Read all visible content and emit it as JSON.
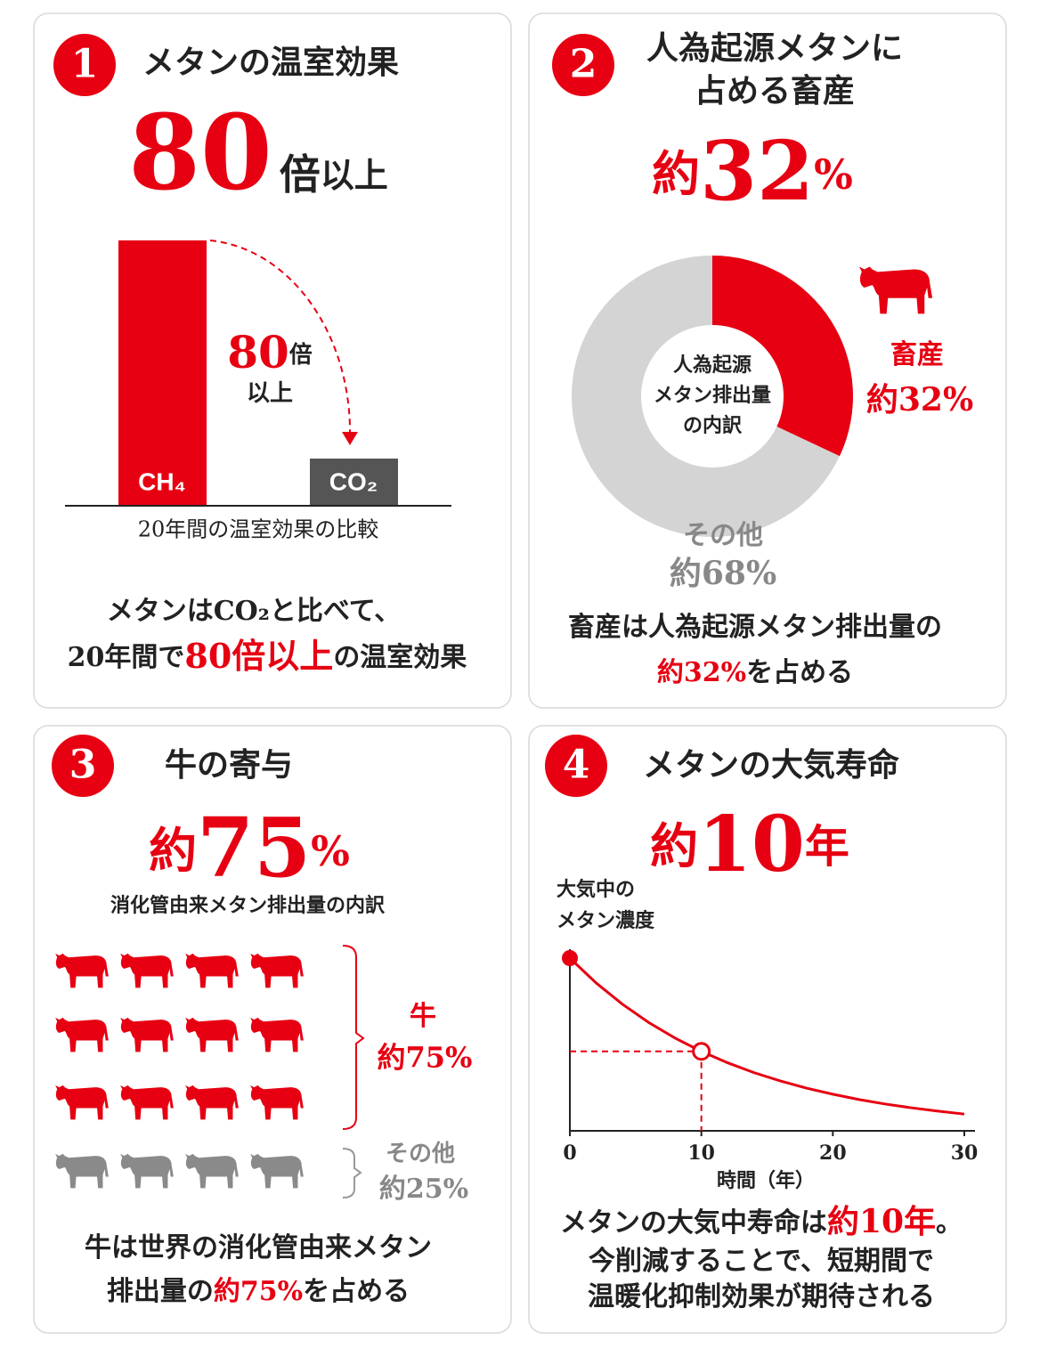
{
  "panels": [
    {
      "number": "1",
      "title": "メタンの温室効果",
      "headline": [
        "80",
        "倍",
        "以上"
      ],
      "bars": [
        "CH₄",
        "CO₂"
      ],
      "annotation": [
        "80",
        "倍",
        "以上"
      ],
      "caption": "20年間の温室効果の比較",
      "summary": [
        [
          "メタンはCO₂と比べて、"
        ],
        [
          "20年間で",
          "80倍以上",
          "の温室効果"
        ]
      ]
    },
    {
      "number": "2",
      "title": [
        "人為起源メタンに",
        "占める畜産"
      ],
      "headline": [
        "約",
        "32",
        "%"
      ],
      "summary": [
        [
          "畜産は人為起源メタン排出量の"
        ],
        [
          "約32%",
          "を占める"
        ]
      ]
    },
    {
      "number": "3",
      "title": "牛の寄与",
      "headline": [
        "約",
        "75",
        "%"
      ],
      "subtitle": "消化管由来メタン排出量の内訳",
      "groups": [
        {
          "name": "牛",
          "label": "約75%"
        },
        {
          "name": "その他",
          "label": "約25%"
        }
      ],
      "summary": [
        [
          "牛は世界の消化管由来メタン"
        ],
        [
          "排出量の",
          "約75%",
          "を占める"
        ]
      ]
    },
    {
      "number": "4",
      "title": "メタンの大気寿命",
      "headline": [
        "約",
        "10",
        "年"
      ],
      "summary": [
        [
          "メタンの大気中寿命は",
          "約10年",
          "。"
        ],
        [
          "今削減することで、短期間で"
        ],
        [
          "温暖化抑制効果が期待される"
        ]
      ]
    }
  ],
  "chart_data": [
    {
      "type": "pie",
      "center_label": [
        "人為起源",
        "メタン排出量",
        "の内訳"
      ],
      "categories": [
        "畜産",
        "その他"
      ],
      "values": [
        32,
        68
      ],
      "value_labels": [
        "約32%",
        "約68%"
      ],
      "colors": [
        "#e60012",
        "#d4d4d4"
      ]
    },
    {
      "type": "line",
      "y_label": [
        "大気中の",
        "メタン濃度"
      ],
      "x_label": "時間（年）",
      "x": [
        0,
        2,
        4,
        6,
        8,
        10,
        12,
        14,
        16,
        18,
        20,
        22,
        24,
        26,
        28,
        30
      ],
      "series": [
        {
          "color": "#e60012",
          "values": [
            100,
            85.6,
            73.3,
            62.7,
            53.7,
            46,
            39.4,
            33.7,
            28.9,
            24.7,
            21.2,
            18.1,
            15.5,
            13.3,
            11.4,
            9.7
          ]
        }
      ],
      "xlim": [
        0,
        30
      ],
      "ylim": [
        0,
        100
      ],
      "xticks": [
        0,
        10,
        20,
        30
      ]
    }
  ]
}
